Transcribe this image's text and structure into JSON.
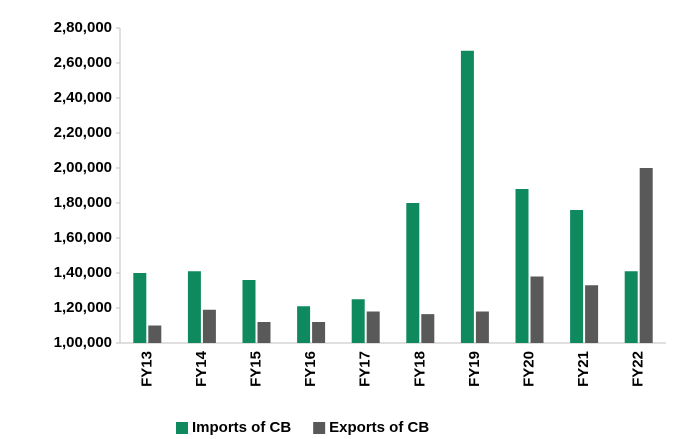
{
  "chart_data": {
    "type": "bar",
    "categories": [
      "FY13",
      "FY14",
      "FY15",
      "FY16",
      "FY17",
      "FY18",
      "FY19",
      "FY20",
      "FY21",
      "FY22"
    ],
    "series": [
      {
        "name": "Imports of CB",
        "color": "#0f8a5f",
        "values": [
          140000,
          141000,
          136000,
          121000,
          125000,
          180000,
          267000,
          188000,
          176000,
          141000
        ]
      },
      {
        "name": "Exports of CB",
        "color": "#595959",
        "values": [
          110000,
          119000,
          112000,
          112000,
          118000,
          116500,
          118000,
          138000,
          133000,
          200000
        ]
      }
    ],
    "ylim": [
      100000,
      280000
    ],
    "yticks": [
      {
        "value": 100000,
        "label": "1,00,000"
      },
      {
        "value": 120000,
        "label": "1,20,000"
      },
      {
        "value": 140000,
        "label": "1,40,000"
      },
      {
        "value": 160000,
        "label": "1,60,000"
      },
      {
        "value": 180000,
        "label": "1,80,000"
      },
      {
        "value": 200000,
        "label": "2,00,000"
      },
      {
        "value": 220000,
        "label": "2,20,000"
      },
      {
        "value": 240000,
        "label": "2,40,000"
      },
      {
        "value": 260000,
        "label": "2,60,000"
      },
      {
        "value": 280000,
        "label": "2,80,000"
      }
    ],
    "grid": false,
    "legend": "bottom"
  }
}
